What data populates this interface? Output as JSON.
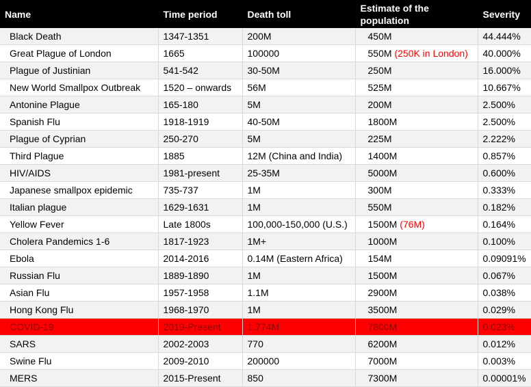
{
  "headers": [
    "Name",
    "Time period",
    "Death toll",
    "Estimate of the population",
    "Severity"
  ],
  "rows": [
    {
      "name": "Black Death",
      "period": "1347-1351",
      "toll": "200M",
      "population": "450M",
      "population_note": "",
      "severity": "44.444%"
    },
    {
      "name": "Great Plague of London",
      "period": "1665",
      "toll": "100000",
      "population": "550M",
      "population_note": "(250K in London)",
      "severity": "40.000%"
    },
    {
      "name": "Plague of Justinian",
      "period": "541-542",
      "toll": "30-50M",
      "population": "250M",
      "population_note": "",
      "severity": "16.000%"
    },
    {
      "name": "New World Smallpox Outbreak",
      "period": "1520 – onwards",
      "toll": "56M",
      "population": "525M",
      "population_note": "",
      "severity": "10.667%"
    },
    {
      "name": "Antonine Plague",
      "period": "165-180",
      "toll": "5M",
      "population": "200M",
      "population_note": "",
      "severity": "2.500%"
    },
    {
      "name": "Spanish Flu",
      "period": "1918-1919",
      "toll": "40-50M",
      "population": "1800M",
      "population_note": "",
      "severity": "2.500%"
    },
    {
      "name": "Plague of Cyprian",
      "period": "250-270",
      "toll": "5M",
      "population": "225M",
      "population_note": "",
      "severity": "2.222%"
    },
    {
      "name": "Third Plague",
      "period": "1885",
      "toll": "12M (China and India)",
      "population": "1400M",
      "population_note": "",
      "severity": "0.857%"
    },
    {
      "name": "HIV/AIDS",
      "period": "1981-present",
      "toll": "25-35M",
      "population": "5000M",
      "population_note": "",
      "severity": "0.600%"
    },
    {
      "name": "Japanese smallpox epidemic",
      "period": "735-737",
      "toll": "1M",
      "population": "300M",
      "population_note": "",
      "severity": "0.333%"
    },
    {
      "name": "Italian plague",
      "period": "1629-1631",
      "toll": "1M",
      "population": "550M",
      "population_note": "",
      "severity": "0.182%"
    },
    {
      "name": "Yellow Fever",
      "period": "Late 1800s",
      "toll": "100,000-150,000 (U.S.)",
      "population": "1500M",
      "population_note": "(76M)",
      "severity": "0.164%"
    },
    {
      "name": "Cholera Pandemics 1-6",
      "period": "1817-1923",
      "toll": "1M+",
      "population": "1000M",
      "population_note": "",
      "severity": "0.100%"
    },
    {
      "name": "Ebola",
      "period": "2014-2016",
      "toll": "0.14M (Eastern Africa)",
      "population": "154M",
      "population_note": "",
      "severity": "0.09091%"
    },
    {
      "name": "Russian Flu",
      "period": "1889-1890",
      "toll": "1M",
      "population": "1500M",
      "population_note": "",
      "severity": "0.067%"
    },
    {
      "name": "Asian Flu",
      "period": "1957-1958",
      "toll": "1.1M",
      "population": "2900M",
      "population_note": "",
      "severity": "0.038%"
    },
    {
      "name": "Hong Kong Flu",
      "period": "1968-1970",
      "toll": "1M",
      "population": "3500M",
      "population_note": "",
      "severity": "0.029%"
    },
    {
      "name": "COVID-19",
      "period": "2019-Present",
      "toll": "1.774M",
      "population": "7800M",
      "population_note": "",
      "severity": "0.023%",
      "highlight": true
    },
    {
      "name": "SARS",
      "period": "2002-2003",
      "toll": "770",
      "population": "6200M",
      "population_note": "",
      "severity": "0.012%"
    },
    {
      "name": "Swine Flu",
      "period": "2009-2010",
      "toll": "200000",
      "population": "7000M",
      "population_note": "",
      "severity": "0.003%"
    },
    {
      "name": "MERS",
      "period": "2015-Present",
      "toll": "850",
      "population": "7300M",
      "population_note": "",
      "severity": "0.00001%"
    }
  ],
  "colors": {
    "header_bg": "#000000",
    "header_text": "#ffffff",
    "highlight_row": "#ff0000",
    "note_text": "#ff0000",
    "stripe": "#f2f2f2"
  }
}
